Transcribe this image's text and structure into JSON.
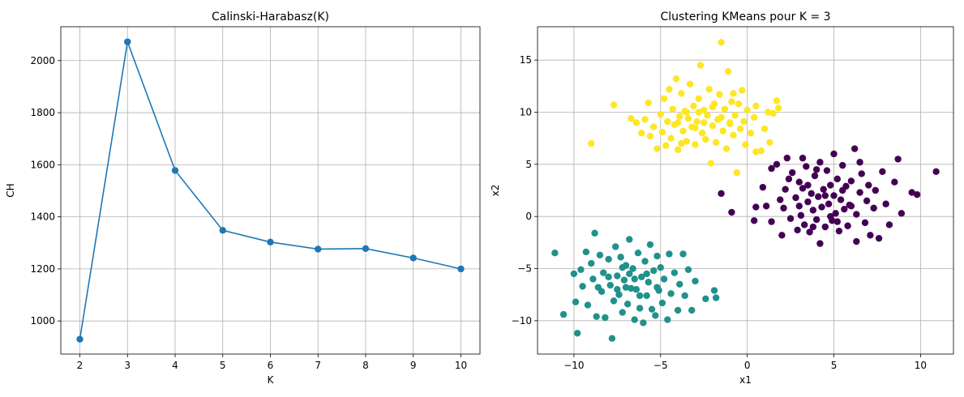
{
  "colors": {
    "line": "#1f77b4",
    "grid": "#b0b0b0",
    "cluster_purple": "#440154",
    "cluster_teal": "#21918c",
    "cluster_yellow": "#fde725"
  },
  "chart_data": [
    {
      "type": "line",
      "title": "Calinski-Harabasz(K)",
      "xlabel": "K",
      "ylabel": "CH",
      "x": [
        2,
        3,
        4,
        5,
        6,
        7,
        8,
        9,
        10
      ],
      "series": [
        {
          "values": [
            930,
            2072,
            1578,
            1348,
            1303,
            1276,
            1278,
            1242,
            1200
          ]
        }
      ],
      "xlim": [
        1.6,
        10.4
      ],
      "ylim": [
        873,
        2130
      ],
      "xticks": [
        2,
        3,
        4,
        5,
        6,
        7,
        8,
        9,
        10
      ],
      "yticks": [
        1000,
        1200,
        1400,
        1600,
        1800,
        2000
      ],
      "marker": "circle",
      "grid": true
    },
    {
      "type": "scatter",
      "title": "Clustering KMeans pour K = 3",
      "xlabel": "x1",
      "ylabel": "x2",
      "xlim": [
        -12.1,
        11.9
      ],
      "ylim": [
        -13.2,
        18.2
      ],
      "xticks": [
        -10,
        -5,
        0,
        5,
        10
      ],
      "yticks": [
        -10,
        -5,
        0,
        5,
        10,
        15
      ],
      "grid": true,
      "series": [
        {
          "color": "#440154",
          "points": [
            [
              -1.5,
              2.2
            ],
            [
              -0.9,
              0.4
            ],
            [
              0.4,
              -0.4
            ],
            [
              0.5,
              0.9
            ],
            [
              0.9,
              2.8
            ],
            [
              1.1,
              1.0
            ],
            [
              1.4,
              4.6
            ],
            [
              1.4,
              -0.5
            ],
            [
              1.7,
              5.0
            ],
            [
              1.9,
              1.6
            ],
            [
              2.0,
              -1.8
            ],
            [
              2.1,
              0.8
            ],
            [
              2.3,
              5.6
            ],
            [
              2.4,
              3.6
            ],
            [
              2.5,
              -0.2
            ],
            [
              2.6,
              4.2
            ],
            [
              2.8,
              1.8
            ],
            [
              2.9,
              -1.3
            ],
            [
              3.0,
              3.3
            ],
            [
              3.1,
              0.1
            ],
            [
              3.2,
              2.7
            ],
            [
              3.3,
              -0.8
            ],
            [
              3.4,
              4.8
            ],
            [
              3.5,
              1.4
            ],
            [
              3.6,
              -1.5
            ],
            [
              3.7,
              2.2
            ],
            [
              3.8,
              0.6
            ],
            [
              3.9,
              3.9
            ],
            [
              4.0,
              -0.3
            ],
            [
              4.1,
              1.9
            ],
            [
              4.2,
              5.2
            ],
            [
              4.2,
              -2.6
            ],
            [
              4.3,
              0.9
            ],
            [
              4.4,
              2.6
            ],
            [
              4.5,
              -1.0
            ],
            [
              4.6,
              4.4
            ],
            [
              4.7,
              1.2
            ],
            [
              4.8,
              3.0
            ],
            [
              4.9,
              -0.4
            ],
            [
              5.0,
              2.0
            ],
            [
              5.0,
              6.0
            ],
            [
              5.1,
              0.3
            ],
            [
              5.2,
              3.6
            ],
            [
              5.3,
              -1.4
            ],
            [
              5.4,
              1.6
            ],
            [
              5.5,
              4.9
            ],
            [
              5.6,
              0.7
            ],
            [
              5.7,
              2.9
            ],
            [
              5.8,
              -0.9
            ],
            [
              5.9,
              1.1
            ],
            [
              6.0,
              3.4
            ],
            [
              6.2,
              6.5
            ],
            [
              6.3,
              -2.4
            ],
            [
              6.3,
              0.2
            ],
            [
              6.5,
              2.3
            ],
            [
              6.6,
              4.1
            ],
            [
              6.8,
              -0.6
            ],
            [
              6.9,
              1.5
            ],
            [
              7.0,
              3.0
            ],
            [
              7.1,
              -1.8
            ],
            [
              7.3,
              0.8
            ],
            [
              7.4,
              2.5
            ],
            [
              7.6,
              -2.1
            ],
            [
              7.8,
              4.3
            ],
            [
              8.0,
              1.2
            ],
            [
              8.2,
              -0.8
            ],
            [
              8.5,
              3.3
            ],
            [
              8.7,
              5.5
            ],
            [
              8.9,
              0.3
            ],
            [
              9.5,
              2.3
            ],
            [
              9.8,
              2.1
            ],
            [
              10.9,
              4.3
            ],
            [
              3.0,
              1.0
            ],
            [
              3.5,
              3.0
            ],
            [
              4.5,
              2.0
            ],
            [
              5.5,
              2.5
            ],
            [
              4.8,
              0.0
            ],
            [
              6.0,
              1.0
            ],
            [
              3.8,
              -1.0
            ],
            [
              5.2,
              -0.5
            ],
            [
              2.2,
              2.6
            ],
            [
              6.5,
              5.2
            ],
            [
              4.0,
              4.5
            ],
            [
              3.2,
              5.6
            ]
          ]
        },
        {
          "color": "#21918c",
          "points": [
            [
              -11.1,
              -3.5
            ],
            [
              -10.6,
              -9.4
            ],
            [
              -10.0,
              -5.5
            ],
            [
              -9.9,
              -8.2
            ],
            [
              -9.8,
              -11.2
            ],
            [
              -9.6,
              -5.1
            ],
            [
              -9.5,
              -6.7
            ],
            [
              -9.3,
              -3.4
            ],
            [
              -9.2,
              -8.5
            ],
            [
              -9.0,
              -4.5
            ],
            [
              -8.9,
              -6.0
            ],
            [
              -8.8,
              -1.6
            ],
            [
              -8.7,
              -9.6
            ],
            [
              -8.5,
              -3.7
            ],
            [
              -8.4,
              -7.2
            ],
            [
              -8.3,
              -5.4
            ],
            [
              -8.2,
              -9.7
            ],
            [
              -8.0,
              -4.1
            ],
            [
              -7.9,
              -6.6
            ],
            [
              -7.8,
              -11.7
            ],
            [
              -7.7,
              -8.1
            ],
            [
              -7.6,
              -2.9
            ],
            [
              -7.5,
              -5.7
            ],
            [
              -7.4,
              -7.5
            ],
            [
              -7.3,
              -3.9
            ],
            [
              -7.2,
              -9.2
            ],
            [
              -7.1,
              -6.1
            ],
            [
              -7.0,
              -4.7
            ],
            [
              -6.9,
              -8.4
            ],
            [
              -6.8,
              -2.2
            ],
            [
              -6.7,
              -6.9
            ],
            [
              -6.6,
              -5.0
            ],
            [
              -6.5,
              -9.9
            ],
            [
              -6.4,
              -7.0
            ],
            [
              -6.3,
              -3.5
            ],
            [
              -6.2,
              -8.8
            ],
            [
              -6.1,
              -5.8
            ],
            [
              -6.0,
              -10.2
            ],
            [
              -5.9,
              -4.3
            ],
            [
              -5.8,
              -7.6
            ],
            [
              -5.7,
              -6.3
            ],
            [
              -5.6,
              -2.7
            ],
            [
              -5.5,
              -8.9
            ],
            [
              -5.4,
              -5.2
            ],
            [
              -5.3,
              -9.5
            ],
            [
              -5.2,
              -3.8
            ],
            [
              -5.1,
              -7.1
            ],
            [
              -5.0,
              -4.9
            ],
            [
              -4.9,
              -8.3
            ],
            [
              -4.8,
              -6.0
            ],
            [
              -4.6,
              -9.9
            ],
            [
              -4.5,
              -3.6
            ],
            [
              -4.4,
              -7.4
            ],
            [
              -4.2,
              -5.4
            ],
            [
              -4.0,
              -9.0
            ],
            [
              -3.9,
              -6.5
            ],
            [
              -3.7,
              -3.6
            ],
            [
              -3.6,
              -7.6
            ],
            [
              -3.4,
              -5.1
            ],
            [
              -3.2,
              -9.0
            ],
            [
              -3.0,
              -6.2
            ],
            [
              -2.4,
              -7.9
            ],
            [
              -1.8,
              -7.8
            ],
            [
              -1.9,
              -7.1
            ],
            [
              -7.0,
              -6.8
            ],
            [
              -6.5,
              -6.0
            ],
            [
              -7.5,
              -7.0
            ],
            [
              -6.8,
              -5.5
            ],
            [
              -8.0,
              -5.8
            ],
            [
              -5.8,
              -5.5
            ],
            [
              -6.2,
              -7.6
            ],
            [
              -7.2,
              -4.9
            ],
            [
              -8.6,
              -6.8
            ],
            [
              -5.2,
              -6.8
            ]
          ]
        },
        {
          "color": "#fde725",
          "points": [
            [
              -9.0,
              7.0
            ],
            [
              -7.7,
              10.7
            ],
            [
              -6.7,
              9.4
            ],
            [
              -6.4,
              9.0
            ],
            [
              -6.1,
              8.0
            ],
            [
              -5.9,
              9.3
            ],
            [
              -5.7,
              10.9
            ],
            [
              -5.6,
              7.7
            ],
            [
              -5.4,
              8.6
            ],
            [
              -5.2,
              6.5
            ],
            [
              -5.0,
              9.8
            ],
            [
              -4.9,
              8.1
            ],
            [
              -4.8,
              11.3
            ],
            [
              -4.7,
              6.8
            ],
            [
              -4.6,
              9.1
            ],
            [
              -4.5,
              12.2
            ],
            [
              -4.4,
              7.5
            ],
            [
              -4.3,
              10.3
            ],
            [
              -4.2,
              8.8
            ],
            [
              -4.1,
              13.2
            ],
            [
              -4.0,
              6.4
            ],
            [
              -3.9,
              9.6
            ],
            [
              -3.8,
              11.8
            ],
            [
              -3.7,
              8.2
            ],
            [
              -3.6,
              10.1
            ],
            [
              -3.5,
              7.2
            ],
            [
              -3.4,
              9.4
            ],
            [
              -3.3,
              12.7
            ],
            [
              -3.2,
              8.6
            ],
            [
              -3.1,
              10.6
            ],
            [
              -3.0,
              6.9
            ],
            [
              -2.9,
              9.1
            ],
            [
              -2.8,
              11.3
            ],
            [
              -2.7,
              14.5
            ],
            [
              -2.6,
              8.0
            ],
            [
              -2.5,
              10.2
            ],
            [
              -2.4,
              7.4
            ],
            [
              -2.3,
              9.7
            ],
            [
              -2.2,
              12.2
            ],
            [
              -2.1,
              5.1
            ],
            [
              -2.0,
              8.7
            ],
            [
              -1.9,
              10.8
            ],
            [
              -1.8,
              7.1
            ],
            [
              -1.7,
              9.3
            ],
            [
              -1.6,
              11.7
            ],
            [
              -1.5,
              16.7
            ],
            [
              -1.4,
              8.2
            ],
            [
              -1.3,
              10.3
            ],
            [
              -1.2,
              6.5
            ],
            [
              -1.1,
              13.9
            ],
            [
              -1.0,
              8.9
            ],
            [
              -0.9,
              11.0
            ],
            [
              -0.8,
              7.8
            ],
            [
              -0.7,
              9.7
            ],
            [
              -0.6,
              4.2
            ],
            [
              -0.5,
              10.8
            ],
            [
              -0.4,
              8.4
            ],
            [
              -0.3,
              12.1
            ],
            [
              -0.2,
              9.1
            ],
            [
              -0.1,
              6.9
            ],
            [
              0.0,
              10.2
            ],
            [
              0.2,
              8.0
            ],
            [
              0.4,
              9.5
            ],
            [
              0.5,
              10.6
            ],
            [
              0.5,
              6.2
            ],
            [
              0.8,
              6.3
            ],
            [
              1.0,
              8.4
            ],
            [
              1.2,
              10.0
            ],
            [
              1.3,
              7.1
            ],
            [
              1.5,
              9.9
            ],
            [
              1.7,
              11.1
            ],
            [
              1.8,
              10.4
            ],
            [
              -3.5,
              10.0
            ],
            [
              -2.5,
              9.0
            ],
            [
              -1.5,
              9.5
            ],
            [
              -3.0,
              8.5
            ],
            [
              -2.0,
              10.5
            ],
            [
              -4.0,
              9.0
            ],
            [
              -1.0,
              9.0
            ],
            [
              -2.8,
              10.0
            ],
            [
              -3.8,
              7.0
            ],
            [
              -0.8,
              11.8
            ]
          ]
        }
      ]
    }
  ]
}
